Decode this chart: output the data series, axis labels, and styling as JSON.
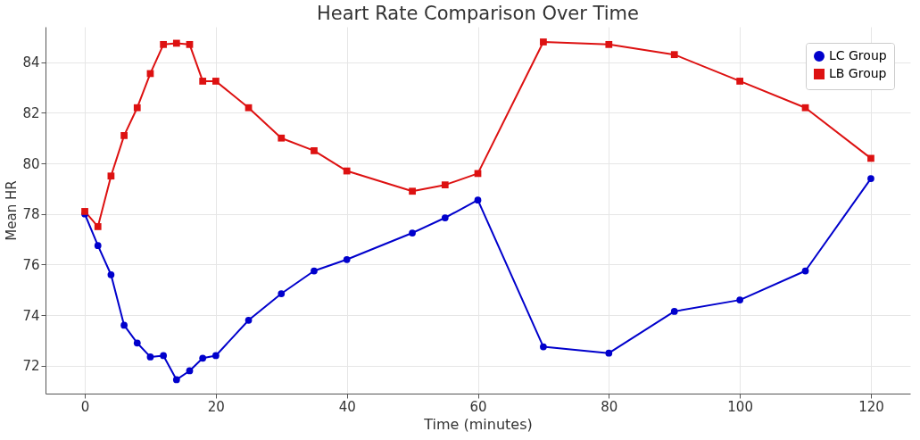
{
  "chart_data": {
    "type": "line",
    "title": "Heart Rate Comparison Over Time",
    "xlabel": "Time (minutes)",
    "ylabel": "Mean HR",
    "x": [
      0,
      2,
      4,
      6,
      8,
      10,
      12,
      14,
      16,
      18,
      20,
      25,
      30,
      35,
      40,
      50,
      55,
      60,
      70,
      80,
      90,
      100,
      110,
      120
    ],
    "series": [
      {
        "name": "LC Group",
        "color": "#0000cc",
        "marker": "circle",
        "values": [
          78.0,
          76.75,
          75.6,
          73.6,
          72.9,
          72.35,
          72.4,
          71.45,
          71.8,
          72.3,
          72.4,
          73.8,
          74.85,
          75.75,
          76.2,
          77.25,
          77.85,
          78.55,
          72.75,
          72.5,
          74.15,
          74.6,
          75.75,
          79.4
        ]
      },
      {
        "name": "LB Group",
        "color": "#dd1111",
        "marker": "square",
        "values": [
          78.1,
          77.5,
          79.5,
          81.1,
          82.2,
          83.55,
          84.7,
          84.75,
          84.7,
          83.25,
          83.25,
          82.2,
          81.0,
          80.5,
          79.7,
          78.9,
          79.15,
          79.6,
          84.8,
          84.7,
          84.3,
          83.25,
          82.2,
          80.2
        ]
      }
    ],
    "xlim": [
      -6,
      126
    ],
    "ylim": [
      70.9,
      85.4
    ],
    "xticks": [
      0,
      20,
      40,
      60,
      80,
      100,
      120
    ],
    "yticks": [
      72,
      74,
      76,
      78,
      80,
      82,
      84
    ],
    "grid": true,
    "legend": "top right",
    "line_style": "solid"
  }
}
